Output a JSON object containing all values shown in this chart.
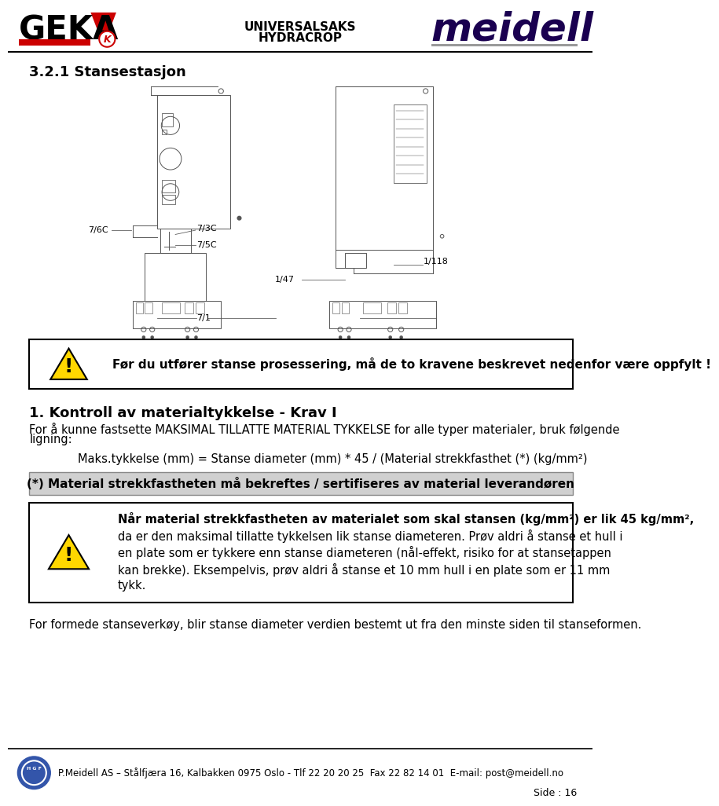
{
  "page_title_line1": "UNIVERSALSAKS",
  "page_title_line2": "HYDRACROP",
  "footer_text": "P.Meidell AS – Stålfjæra 16, Kalbakken 0975 Oslo - Tlf 22 20 20 25  Fax 22 82 14 01  E-mail: post@meidell.no",
  "page_number": "Side : 16",
  "section_title": "3.2.1 Stansestasjon",
  "warning_box_text": "Før du utfører stanse prosessering, må de to kravene beskrevet nedenfor være oppfylt !",
  "krav_title": "1. Kontroll av materialtykkelse - Krav I",
  "krav_body1": "For å kunne fastsette MAKSIMAL TILLATTE MATERIAL TYKKELSE for alle typer materialer, bruk følgende",
  "krav_body2": "ligning:",
  "formula": "Maks.tykkelse (mm) = Stanse diameter (mm) * 45 / (Material strekkfasthet (*) (kg/mm²)",
  "grey_box_text": "(*) Material strekkfastheten må bekreftes / sertifiseres av material leverandøren",
  "warning2_line1": "Når material strekkfastheten av materialet som skal stansen (kg/mm²) er lik 45 kg/mm²,",
  "warning2_line2": "da er den maksimal tillatte tykkelsen lik stanse diameteren. Prøv aldri å stanse et hull i",
  "warning2_line3": "en plate som er tykkere enn stanse diameteren (nål-effekt, risiko for at stansetappen",
  "warning2_line4": "kan brekke). Eksempelvis, prøv aldri å stanse et 10 mm hull i en plate som er 11 mm",
  "warning2_line5": "tykk.",
  "footer_note": "For formede stanseverkøy, blir stanse diameter verdien bestemt ut fra den minste siden til stanseformen.",
  "bg_color": "#ffffff",
  "meidell_color": "#1a0050",
  "geka_red": "#cc0000",
  "lw": 0.7,
  "diag_color": "#555555"
}
